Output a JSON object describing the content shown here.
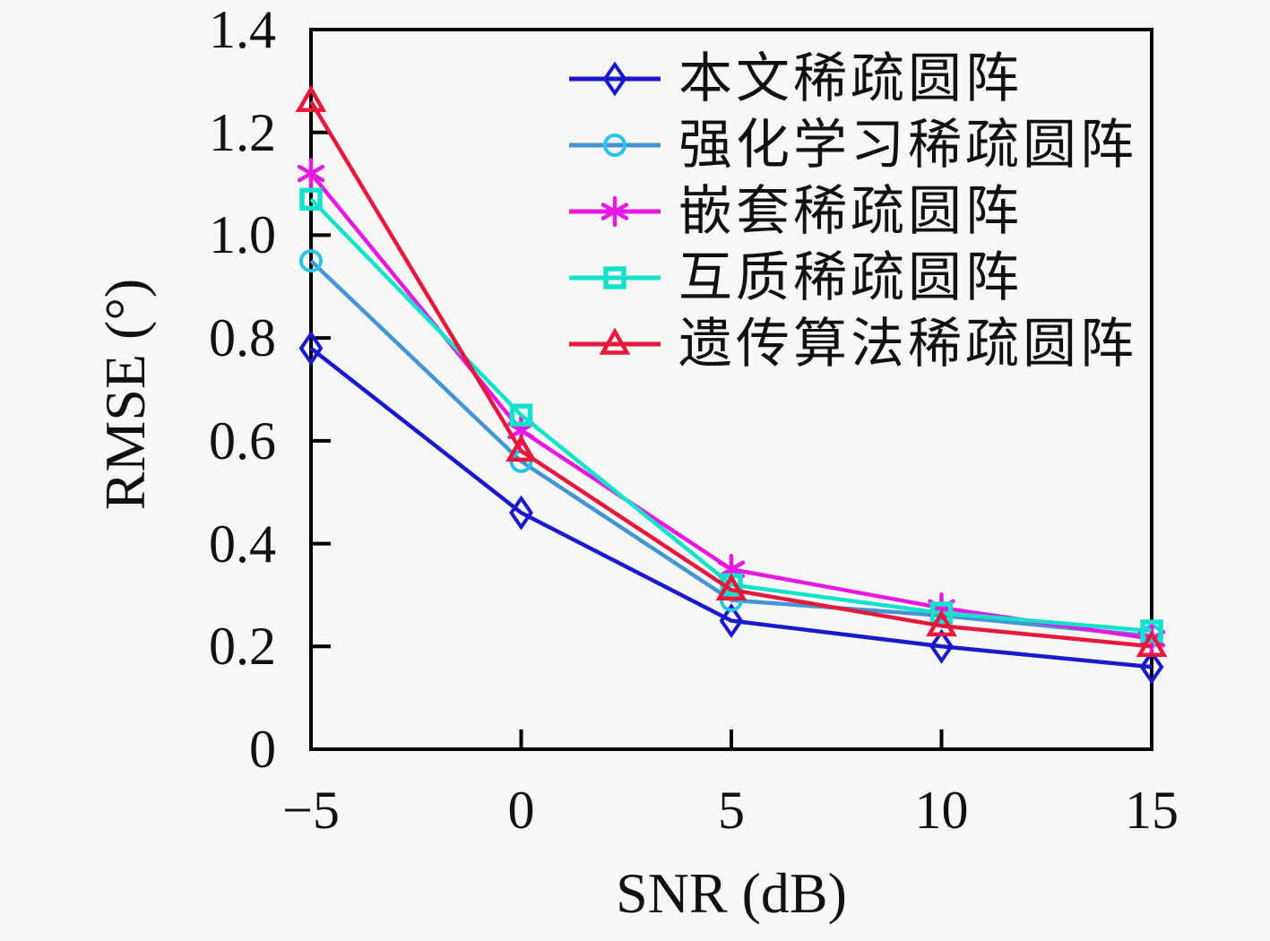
{
  "figure": {
    "background": "#f7f7f5",
    "frame_color": "#000000"
  },
  "chart_data": {
    "type": "line",
    "title": "",
    "xlabel": "SNR (dB)",
    "ylabel": "RMSE (°)",
    "x": [
      -5,
      0,
      5,
      10,
      15
    ],
    "xlim": [
      -5,
      15
    ],
    "ylim": [
      0,
      1.4
    ],
    "x_ticks": [
      -5,
      0,
      5,
      10,
      15
    ],
    "x_tick_labels": [
      "−5",
      "0",
      "5",
      "10",
      "15"
    ],
    "y_ticks": [
      0,
      0.2,
      0.4,
      0.6,
      0.8,
      1.0,
      1.2,
      1.4
    ],
    "y_tick_labels": [
      "0",
      "0.2",
      "0.4",
      "0.6",
      "0.8",
      "1.0",
      "1.2",
      "1.4"
    ],
    "grid": false,
    "legend_position": "top-right-inside",
    "series": [
      {
        "name": "本文稀疏圆阵",
        "marker": "diamond",
        "line_color": "#1a1acd",
        "marker_color": "#1a1acd",
        "values": [
          0.78,
          0.46,
          0.25,
          0.2,
          0.16
        ]
      },
      {
        "name": "强化学习稀疏圆阵",
        "marker": "circle",
        "line_color": "#4595d5",
        "marker_color": "#28c4e6",
        "values": [
          0.95,
          0.56,
          0.29,
          0.26,
          0.22
        ]
      },
      {
        "name": "嵌套稀疏圆阵",
        "marker": "asterisk",
        "line_color": "#e619e0",
        "marker_color": "#e619e0",
        "values": [
          1.12,
          0.62,
          0.35,
          0.275,
          0.215
        ]
      },
      {
        "name": "互质稀疏圆阵",
        "marker": "square",
        "line_color": "#12e2cc",
        "marker_color": "#12e2cc",
        "values": [
          1.07,
          0.65,
          0.32,
          0.265,
          0.23
        ]
      },
      {
        "name": "遗传算法稀疏圆阵",
        "marker": "triangle",
        "line_color": "#e6193c",
        "marker_color": "#e6193c",
        "values": [
          1.26,
          0.58,
          0.31,
          0.24,
          0.2
        ]
      }
    ]
  }
}
